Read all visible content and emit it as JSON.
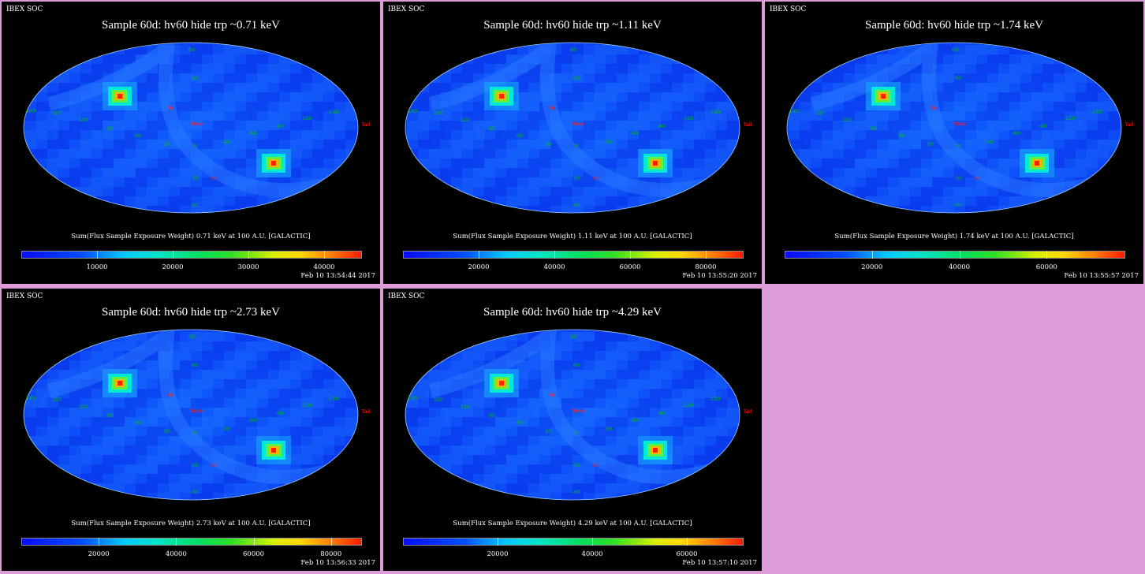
{
  "header_left": "IBEX SOC",
  "caption_prefix": "Sum(Flux Sample Exposure Weight)",
  "caption_suffix": "keV at 100 A.U. [GALACTIC]",
  "colors": {
    "background": "#000000",
    "frame": "#dc9cd8",
    "ellipse_outline": "#a0d0ff"
  },
  "chart_data": [
    {
      "type": "heatmap",
      "title": "Sample 60d: hv60 hide trp ~0.71 keV",
      "caption": "Sum(Flux Sample Exposure Weight)  0.71 keV at 100 A.U. [GALACTIC]",
      "timestamp": "Feb 10 13:54:44 2017",
      "colorbar_ticks": [
        "10000",
        "20000",
        "30000",
        "40000"
      ],
      "colorbar_values": [
        10000,
        20000,
        30000,
        40000
      ],
      "colorbar_range": [
        0,
        45000
      ],
      "projection": "Mollweide galactic"
    },
    {
      "type": "heatmap",
      "title": "Sample 60d: hv60 hide trp ~1.11 keV",
      "caption": "Sum(Flux Sample Exposure Weight)  1.11 keV at 100 A.U. [GALACTIC]",
      "timestamp": "Feb 10 13:55:20 2017",
      "colorbar_ticks": [
        "20000",
        "40000",
        "60000",
        "80000"
      ],
      "colorbar_values": [
        20000,
        40000,
        60000,
        80000
      ],
      "colorbar_range": [
        0,
        90000
      ],
      "projection": "Mollweide galactic"
    },
    {
      "type": "heatmap",
      "title": "Sample 60d: hv60 hide trp ~1.74 keV",
      "caption": "Sum(Flux Sample Exposure Weight)  1.74 keV at 100 A.U. [GALACTIC]",
      "timestamp": "Feb 10 13:55:57 2017",
      "colorbar_ticks": [
        "20000",
        "40000",
        "60000"
      ],
      "colorbar_values": [
        20000,
        40000,
        60000
      ],
      "colorbar_range": [
        0,
        78000
      ],
      "projection": "Mollweide galactic"
    },
    {
      "type": "heatmap",
      "title": "Sample 60d: hv60 hide trp ~2.73 keV",
      "caption": "Sum(Flux Sample Exposure Weight)  2.73 keV at 100 A.U. [GALACTIC]",
      "timestamp": "Feb 10 13:56:33 2017",
      "colorbar_ticks": [
        "20000",
        "40000",
        "60000",
        "80000"
      ],
      "colorbar_values": [
        20000,
        40000,
        60000,
        80000
      ],
      "colorbar_range": [
        0,
        88000
      ],
      "projection": "Mollweide galactic"
    },
    {
      "type": "heatmap",
      "title": "Sample 60d: hv60 hide trp ~4.29 keV",
      "caption": "Sum(Flux Sample Exposure Weight)  4.29 keV at 100 A.U. [GALACTIC]",
      "timestamp": "Feb 10 13:57:10 2017",
      "colorbar_ticks": [
        "20000",
        "40000",
        "60000"
      ],
      "colorbar_values": [
        20000,
        40000,
        60000
      ],
      "colorbar_range": [
        0,
        72000
      ],
      "projection": "Mollweide galactic"
    }
  ],
  "grid_labels": {
    "green": [
      "180",
      "150",
      "120",
      "90",
      "60",
      "30",
      "0",
      "-30",
      "-60",
      "-90",
      "-120",
      "-150",
      "-180",
      "60",
      "30",
      "0",
      "-30",
      "-60"
    ],
    "red": [
      "Nose",
      "Tail",
      "ram",
      "anti",
      "rib"
    ]
  }
}
